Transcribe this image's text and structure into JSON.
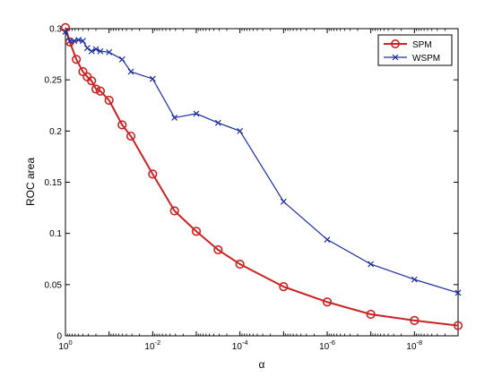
{
  "chart_data": {
    "type": "line",
    "title": "",
    "xlabel": "α",
    "ylabel": "ROC area",
    "xscale": "log-reversed",
    "xlim_exponent": [
      0,
      -9
    ],
    "ylim": [
      0,
      0.3
    ],
    "grid": false,
    "legend_position": "top-right",
    "x_tick_labels": [
      {
        "base": "10",
        "exp": "0",
        "exponent": 0
      },
      {
        "base": "10",
        "exp": "-2",
        "exponent": -2
      },
      {
        "base": "10",
        "exp": "-4",
        "exponent": -4
      },
      {
        "base": "10",
        "exp": "-6",
        "exponent": -6
      },
      {
        "base": "10",
        "exp": "-8",
        "exponent": -8
      }
    ],
    "y_ticks": [
      0,
      0.05,
      0.1,
      0.15,
      0.2,
      0.25,
      0.3
    ],
    "y_tick_labels": [
      "0",
      "0.05",
      "0.1",
      "0.15",
      "0.2",
      "0.25",
      "0.3"
    ],
    "series": [
      {
        "name": "SPM",
        "color": "#cc2222",
        "marker": "circle",
        "x_exponent": [
          0,
          -0.1,
          -0.25,
          -0.4,
          -0.5,
          -0.6,
          -0.7,
          -0.8,
          -1.0,
          -1.3,
          -1.5,
          -2.0,
          -2.5,
          -3.0,
          -3.5,
          -4.0,
          -5.0,
          -6.0,
          -7.0,
          -8.0,
          -9.0
        ],
        "y": [
          0.301,
          0.287,
          0.27,
          0.258,
          0.253,
          0.249,
          0.241,
          0.239,
          0.23,
          0.206,
          0.195,
          0.158,
          0.122,
          0.102,
          0.084,
          0.07,
          0.048,
          0.033,
          0.021,
          0.015,
          0.01
        ]
      },
      {
        "name": "WSPM",
        "color": "#1a2ea0",
        "marker": "x",
        "x_exponent": [
          0,
          -0.1,
          -0.2,
          -0.3,
          -0.4,
          -0.5,
          -0.6,
          -0.7,
          -0.8,
          -1.0,
          -1.3,
          -1.5,
          -2.0,
          -2.5,
          -3.0,
          -3.5,
          -4.0,
          -5.0,
          -6.0,
          -7.0,
          -8.0,
          -9.0
        ],
        "y": [
          0.297,
          0.288,
          0.288,
          0.289,
          0.288,
          0.281,
          0.278,
          0.28,
          0.278,
          0.277,
          0.27,
          0.258,
          0.251,
          0.213,
          0.217,
          0.208,
          0.2,
          0.131,
          0.094,
          0.07,
          0.055,
          0.042
        ]
      }
    ]
  }
}
